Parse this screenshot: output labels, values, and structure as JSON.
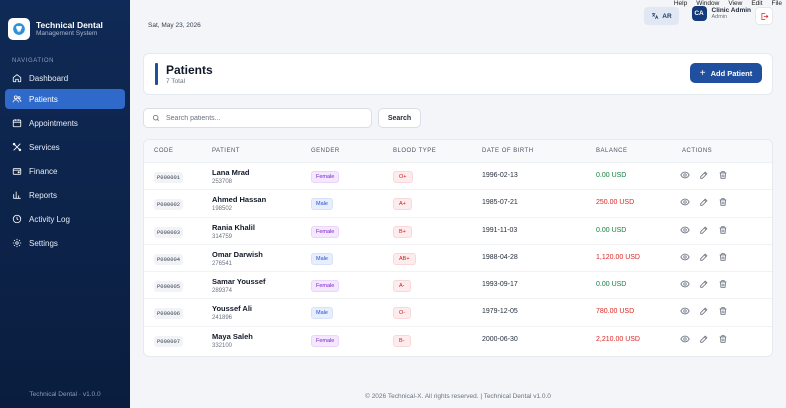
{
  "app": {
    "title": "Technical Dental",
    "subtitle": "Management System",
    "version_footer": "Technical Dental · v1.0.0"
  },
  "menubar": [
    "Help",
    "Window",
    "View",
    "Edit",
    "File"
  ],
  "sidebar": {
    "heading": "NAVIGATION",
    "items": [
      {
        "label": "Dashboard",
        "icon": "home-icon",
        "active": false
      },
      {
        "label": "Patients",
        "icon": "users-icon",
        "active": true
      },
      {
        "label": "Appointments",
        "icon": "calendar-icon",
        "active": false
      },
      {
        "label": "Services",
        "icon": "tools-icon",
        "active": false
      },
      {
        "label": "Finance",
        "icon": "wallet-icon",
        "active": false
      },
      {
        "label": "Reports",
        "icon": "chart-icon",
        "active": false
      },
      {
        "label": "Activity Log",
        "icon": "activity-icon",
        "active": false
      },
      {
        "label": "Settings",
        "icon": "gear-icon",
        "active": false
      }
    ]
  },
  "topbar": {
    "date": "Sat, May 23, 2026",
    "lang_button": "AR",
    "user": {
      "initials": "CA",
      "name": "Clinic Admin",
      "role": "Admin"
    }
  },
  "page": {
    "title": "Patients",
    "count": "7 Total",
    "add_button": "Add Patient"
  },
  "search": {
    "placeholder": "Search patients...",
    "button": "Search"
  },
  "table": {
    "headers": [
      "CODE",
      "PATIENT",
      "GENDER",
      "BLOOD TYPE",
      "DATE OF BIRTH",
      "BALANCE",
      "ACTIONS"
    ],
    "rows": [
      {
        "code": "P000001",
        "name": "Lana Mrad",
        "id": "253708",
        "gender": "Female",
        "blood": "O+",
        "dob": "1996-02-13",
        "balance": "0.00 USD",
        "balance_status": "pos"
      },
      {
        "code": "P000002",
        "name": "Ahmed Hassan",
        "id": "198502",
        "gender": "Male",
        "blood": "A+",
        "dob": "1985-07-21",
        "balance": "250.00 USD",
        "balance_status": "neg"
      },
      {
        "code": "P000003",
        "name": "Rania Khalil",
        "id": "314759",
        "gender": "Female",
        "blood": "B+",
        "dob": "1991-11-03",
        "balance": "0.00 USD",
        "balance_status": "pos"
      },
      {
        "code": "P000004",
        "name": "Omar Darwish",
        "id": "276541",
        "gender": "Male",
        "blood": "AB+",
        "dob": "1988-04-28",
        "balance": "1,120.00 USD",
        "balance_status": "neg"
      },
      {
        "code": "P000005",
        "name": "Samar Youssef",
        "id": "289374",
        "gender": "Female",
        "blood": "A-",
        "dob": "1993-09-17",
        "balance": "0.00 USD",
        "balance_status": "pos"
      },
      {
        "code": "P000006",
        "name": "Youssef Ali",
        "id": "241896",
        "gender": "Male",
        "blood": "O-",
        "dob": "1979-12-05",
        "balance": "780.00 USD",
        "balance_status": "neg"
      },
      {
        "code": "P000007",
        "name": "Maya Saleh",
        "id": "332100",
        "gender": "Female",
        "blood": "B-",
        "dob": "2000-06-30",
        "balance": "2,210.00 USD",
        "balance_status": "neg"
      }
    ]
  },
  "footer": "© 2026 Technical-X. All rights reserved. | Technical Dental v1.0.0",
  "colors": {
    "sidebar": "#0f2a56",
    "accent": "#1f4f9e",
    "active_nav": "#2f69c9",
    "positive": "#15803d",
    "negative": "#dc2626"
  }
}
